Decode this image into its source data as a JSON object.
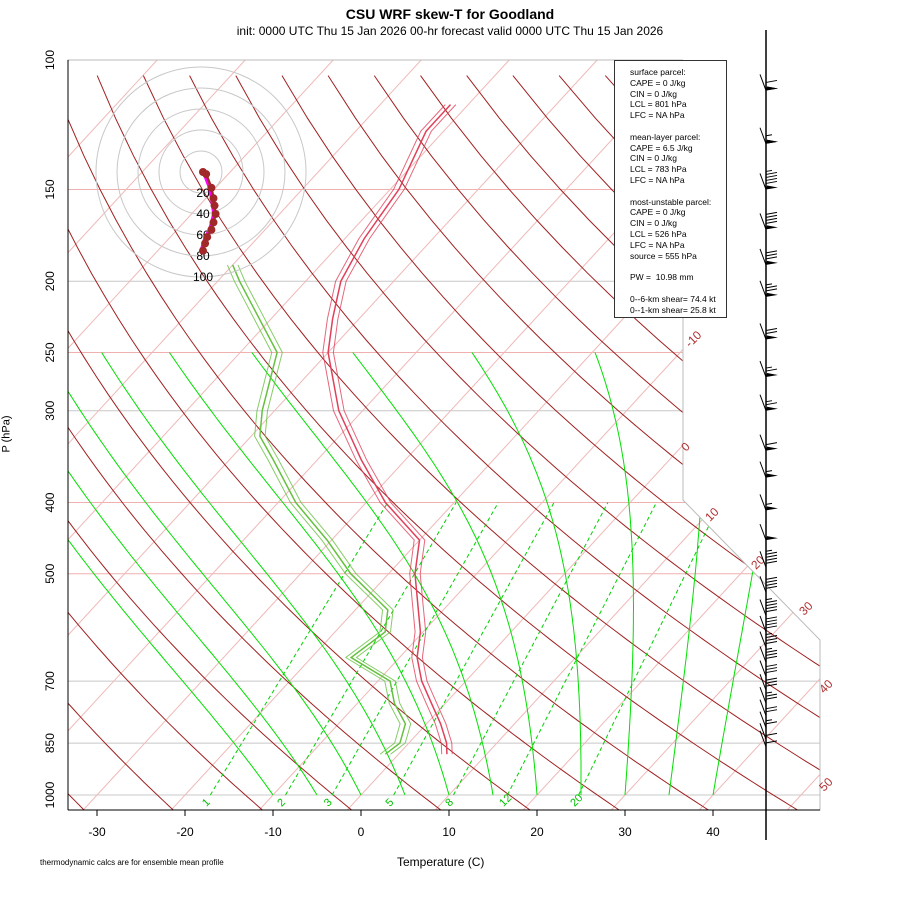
{
  "title": "CSU WRF skew-T for Goodland",
  "subtitle": "init: 0000 UTC Thu 15 Jan 2026    00-hr forecast valid 0000 UTC Thu 15 Jan 2026",
  "footnote": "thermodynamic calcs are for ensemble mean profile",
  "info_lines": [
    "surface parcel:",
    "CAPE = 0 J/kg",
    "CIN = 0 J/kg",
    "LCL = 801 hPa",
    "LFC = NA hPa",
    "",
    "mean-layer parcel:",
    "CAPE = 6.5 J/kg",
    "CIN = 0 J/kg",
    "LCL = 783 hPa",
    "LFC = NA hPa",
    "",
    "most-unstable parcel:",
    "CAPE = 0 J/kg",
    "CIN = 0 J/kg",
    "LCL = 526 hPa",
    "LFC = NA hPa",
    "source = 555 hPa",
    "",
    "PW =  10.98 mm",
    "",
    "0--6-km shear= 74.4 kt",
    "0--1-km shear= 25.8 kt"
  ],
  "chart_data": {
    "type": "line",
    "title": "CSU WRF skew-T for Goodland",
    "xlabel": "Temperature (C)",
    "ylabel": "P (hPa)",
    "xlim": [
      -33,
      45
    ],
    "ylim": [
      1000,
      100
    ],
    "pressure_ticks": [
      "100",
      "150",
      "200",
      "250",
      "300",
      "400",
      "500",
      "700",
      "850",
      "1000"
    ],
    "temperature_ticks": [
      "-30",
      "-20",
      "-10",
      "0",
      "10",
      "20",
      "30",
      "40"
    ],
    "isotherm_labels": [
      "-10",
      "0",
      "10",
      "20",
      "30",
      "40",
      "50"
    ],
    "mixing_ratio_labels": [
      "1",
      "2",
      "3",
      "5",
      "8",
      "12",
      "20"
    ],
    "hodograph_ring_labels": [
      "20",
      "40",
      "60",
      "80",
      "100"
    ],
    "colors": {
      "temperature": "#e0405a",
      "dewpoint": "#66c040",
      "dry_adiabat": "#a02020",
      "isotherm": "#f0b8b8",
      "moist_adiabat": "#00e000",
      "mixing_ratio": "#00d000",
      "wind": "#000000"
    },
    "series": [
      {
        "name": "temperature",
        "pressure": [
          880,
          850,
          800,
          750,
          700,
          650,
          600,
          550,
          500,
          450,
          400,
          350,
          300,
          250,
          225,
          200,
          175,
          150,
          125,
          115
        ],
        "values": [
          5.5,
          4.3,
          1.6,
          -1.6,
          -5,
          -8,
          -10.3,
          -13.5,
          -17,
          -20,
          -27.8,
          -35,
          -42.7,
          -50,
          -53,
          -56,
          -57.8,
          -59,
          -62,
          -62
        ]
      },
      {
        "name": "dewpoint",
        "pressure": [
          880,
          850,
          800,
          750,
          700,
          650,
          600,
          560,
          500,
          450,
          400,
          350,
          325,
          300,
          250,
          220,
          200,
          190
        ],
        "values": [
          -1.5,
          -1,
          -2.4,
          -5.8,
          -8.6,
          -15.5,
          -14.3,
          -16.3,
          -24.3,
          -30.5,
          -38,
          -45,
          -49,
          -51.4,
          -55.8,
          -62.5,
          -67.5,
          -70
        ]
      }
    ],
    "wind_barbs": [
      {
        "p": 110,
        "kt": 110
      },
      {
        "p": 130,
        "kt": 105
      },
      {
        "p": 150,
        "kt": 95
      },
      {
        "p": 170,
        "kt": 90
      },
      {
        "p": 190,
        "kt": 80
      },
      {
        "p": 210,
        "kt": 75
      },
      {
        "p": 240,
        "kt": 70
      },
      {
        "p": 270,
        "kt": 65
      },
      {
        "p": 300,
        "kt": 65
      },
      {
        "p": 340,
        "kt": 60
      },
      {
        "p": 370,
        "kt": 55
      },
      {
        "p": 410,
        "kt": 55
      },
      {
        "p": 450,
        "kt": 50
      },
      {
        "p": 490,
        "kt": 45
      },
      {
        "p": 530,
        "kt": 40
      },
      {
        "p": 570,
        "kt": 45
      },
      {
        "p": 600,
        "kt": 40
      },
      {
        "p": 630,
        "kt": 35
      },
      {
        "p": 660,
        "kt": 35
      },
      {
        "p": 690,
        "kt": 30
      },
      {
        "p": 720,
        "kt": 30
      },
      {
        "p": 750,
        "kt": 25
      },
      {
        "p": 780,
        "kt": 20
      },
      {
        "p": 810,
        "kt": 15
      },
      {
        "p": 840,
        "kt": 10
      },
      {
        "p": 860,
        "kt": 10
      }
    ],
    "hodograph": {
      "u": [
        0,
        3,
        8,
        10,
        11,
        12,
        10,
        8,
        4,
        2,
        0
      ],
      "v": [
        0,
        -2,
        -15,
        -25,
        -32,
        -40,
        -48,
        -55,
        -62,
        -68,
        -75
      ]
    }
  }
}
